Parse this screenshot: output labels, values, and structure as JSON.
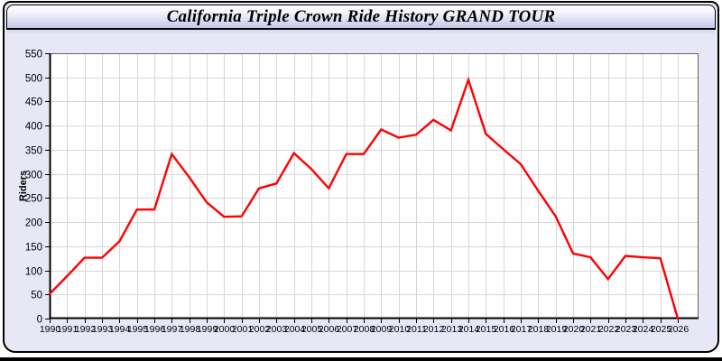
{
  "window": {
    "title": "California Triple Crown Ride History GRAND TOUR"
  },
  "colors": {
    "line": "#FF0000",
    "plot_background": "#FFFFFF",
    "grid": "#D6D6D6",
    "plot_border": "#666666",
    "axis": "#000000",
    "page_background": "#E7E7F6",
    "text": "#000000"
  },
  "chart_data": {
    "type": "line",
    "title": "California Triple Crown Ride History GRAND TOUR",
    "xlabel": "",
    "ylabel": "Riders",
    "legend": false,
    "grid": true,
    "ylim": [
      0,
      550
    ],
    "y_ticks": [
      0,
      50,
      100,
      150,
      200,
      250,
      300,
      350,
      400,
      450,
      500,
      550
    ],
    "x": [
      1990,
      1991,
      1992,
      1993,
      1994,
      1995,
      1996,
      1997,
      1998,
      1999,
      2000,
      2001,
      2002,
      2003,
      2004,
      2005,
      2006,
      2007,
      2008,
      2009,
      2010,
      2011,
      2012,
      2013,
      2014,
      2015,
      2016,
      2017,
      2018,
      2019,
      2020,
      2021,
      2022,
      2023,
      2024,
      2025,
      2026
    ],
    "series": [
      {
        "name": "Riders",
        "color": "#FF0000",
        "values": [
          51,
          88,
          126,
          126,
          160,
          226,
          226,
          341,
          293,
          241,
          211,
          212,
          270,
          280,
          343,
          310,
          270,
          341,
          341,
          392,
          375,
          381,
          412,
          390,
          495,
          383,
          351,
          320,
          265,
          212,
          135,
          127,
          82,
          130,
          127,
          125,
          0
        ]
      }
    ]
  }
}
